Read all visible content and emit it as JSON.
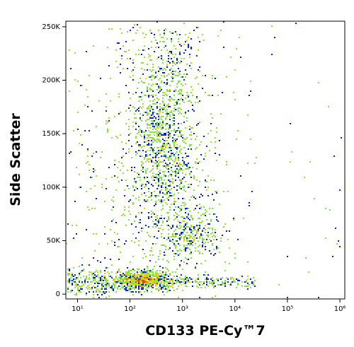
{
  "chart_data": {
    "type": "density",
    "x_label": "CD133 PE-Cy™7",
    "y_label": "Side Scatter",
    "xscale": "log",
    "xlim": [
      6,
      1240000
    ],
    "xticks": [
      {
        "value": 10,
        "label": "10¹"
      },
      {
        "value": 100,
        "label": "10²"
      },
      {
        "value": 1000,
        "label": "10³"
      },
      {
        "value": 10000,
        "label": "10⁴"
      },
      {
        "value": 100000,
        "label": "10⁵"
      },
      {
        "value": 1000000,
        "label": "10⁶"
      }
    ],
    "ylim": [
      -4500,
      255200
    ],
    "yticks": [
      0,
      {
        "value": 50000,
        "label": "50K"
      },
      {
        "value": 100000,
        "label": "100K"
      },
      {
        "value": 150000,
        "label": "150K"
      },
      {
        "value": 200000,
        "label": "200K"
      },
      {
        "value": 250000,
        "label": "250K"
      }
    ]
  }
}
